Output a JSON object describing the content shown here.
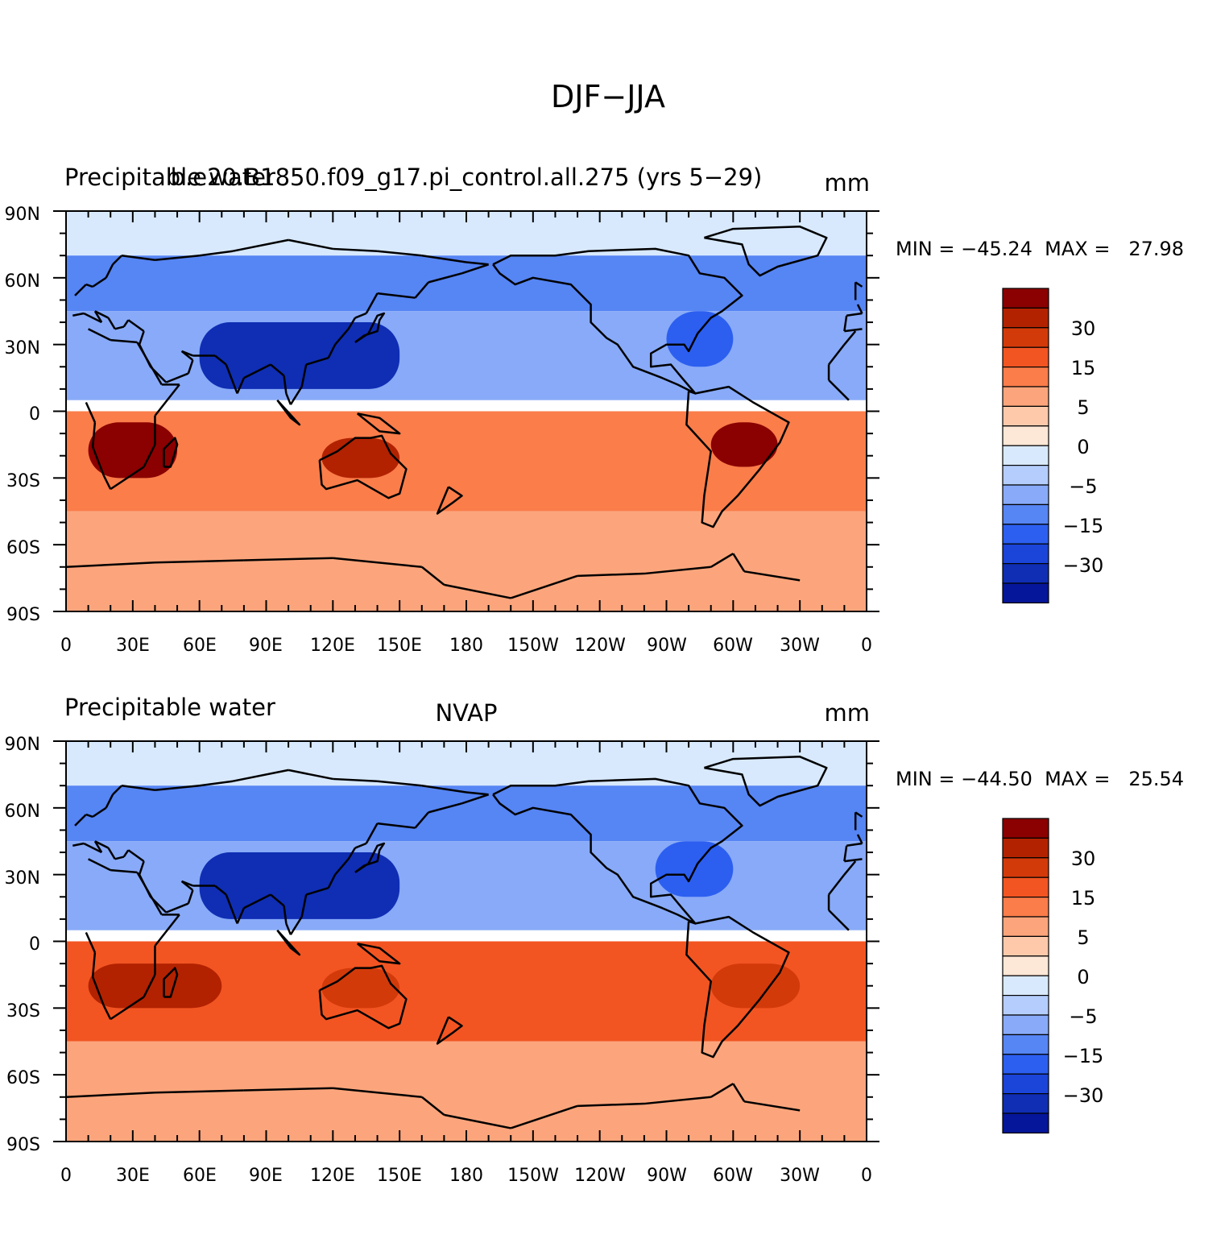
{
  "figure": {
    "main_title": "DJF−JJA"
  },
  "axes": {
    "lat_labels": [
      "90N",
      "60N",
      "30N",
      "0",
      "30S",
      "60S",
      "90S"
    ],
    "lon_labels": [
      "0",
      "30E",
      "60E",
      "90E",
      "120E",
      "150E",
      "180",
      "150W",
      "120W",
      "90W",
      "60W",
      "30W",
      "0"
    ]
  },
  "colorbar": {
    "colors": [
      "#8b0000",
      "#b22200",
      "#d33a0a",
      "#f25522",
      "#fa7d4a",
      "#fca57c",
      "#fdc9aa",
      "#fde7d6",
      "#d8e9fd",
      "#b4cdfd",
      "#88aaf8",
      "#5685f4",
      "#2c5ff0",
      "#1b44d8",
      "#0f2eb4",
      "#06169a"
    ],
    "labels": [
      "30",
      "15",
      "5",
      "0",
      "−5",
      "−15",
      "−30"
    ]
  },
  "panels": [
    {
      "left_title": "Precipitable water",
      "center_title": "b.e20.B1850.f09_g17.pi_control.all.275 (yrs 5−29)",
      "units": "mm",
      "stats": "MIN = −45.24  MAX =   27.98"
    },
    {
      "left_title": "Precipitable water",
      "center_title": "NVAP",
      "units": "mm",
      "stats": "MIN = −44.50  MAX =   25.54"
    }
  ],
  "chart_data": [
    {
      "type": "heatmap",
      "title": "b.e20.B1850.f09_g17.pi_control.all.275 (yrs 5−29)",
      "variable": "Precipitable water",
      "units": "mm",
      "season": "DJF−JJA",
      "min": -45.24,
      "max": 27.98,
      "levels": [
        -40,
        -35,
        -30,
        -25,
        -20,
        -15,
        -10,
        -5,
        -1,
        1,
        5,
        10,
        15,
        20,
        25,
        30
      ],
      "xlim": [
        0,
        360
      ],
      "ylim": [
        -90,
        90
      ],
      "regions": [
        {
          "lon": [
            0,
            360
          ],
          "lat": [
            70,
            90
          ],
          "value": -8
        },
        {
          "lon": [
            0,
            360
          ],
          "lat": [
            45,
            70
          ],
          "value": -22
        },
        {
          "lon": [
            0,
            360
          ],
          "lat": [
            5,
            45
          ],
          "value": -20
        },
        {
          "lon": [
            60,
            150
          ],
          "lat": [
            10,
            40
          ],
          "value": -38
        },
        {
          "lon": [
            270,
            300
          ],
          "lat": [
            20,
            45
          ],
          "value": -30
        },
        {
          "lon": [
            0,
            360
          ],
          "lat": [
            -45,
            0
          ],
          "value": 8
        },
        {
          "lon": [
            10,
            50
          ],
          "lat": [
            -30,
            -5
          ],
          "value": 25
        },
        {
          "lon": [
            115,
            150
          ],
          "lat": [
            -30,
            -12
          ],
          "value": 22
        },
        {
          "lon": [
            290,
            320
          ],
          "lat": [
            -25,
            -5
          ],
          "value": 27
        },
        {
          "lon": [
            0,
            360
          ],
          "lat": [
            -90,
            -45
          ],
          "value": 3
        }
      ]
    },
    {
      "type": "heatmap",
      "title": "NVAP",
      "variable": "Precipitable water",
      "units": "mm",
      "season": "DJF−JJA",
      "min": -44.5,
      "max": 25.54,
      "levels": [
        -40,
        -35,
        -30,
        -25,
        -20,
        -15,
        -10,
        -5,
        -1,
        1,
        5,
        10,
        15,
        20,
        25,
        30
      ],
      "xlim": [
        0,
        360
      ],
      "ylim": [
        -90,
        90
      ],
      "regions": [
        {
          "lon": [
            0,
            360
          ],
          "lat": [
            70,
            90
          ],
          "value": -8
        },
        {
          "lon": [
            0,
            360
          ],
          "lat": [
            45,
            70
          ],
          "value": -22
        },
        {
          "lon": [
            0,
            360
          ],
          "lat": [
            5,
            45
          ],
          "value": -20
        },
        {
          "lon": [
            60,
            150
          ],
          "lat": [
            10,
            40
          ],
          "value": -36
        },
        {
          "lon": [
            265,
            300
          ],
          "lat": [
            20,
            45
          ],
          "value": -28
        },
        {
          "lon": [
            0,
            360
          ],
          "lat": [
            -45,
            0
          ],
          "value": 10
        },
        {
          "lon": [
            10,
            70
          ],
          "lat": [
            -30,
            -10
          ],
          "value": 20
        },
        {
          "lon": [
            115,
            150
          ],
          "lat": [
            -30,
            -12
          ],
          "value": 18
        },
        {
          "lon": [
            290,
            330
          ],
          "lat": [
            -30,
            -10
          ],
          "value": 15
        },
        {
          "lon": [
            0,
            360
          ],
          "lat": [
            -90,
            -45
          ],
          "value": 2
        }
      ]
    }
  ]
}
